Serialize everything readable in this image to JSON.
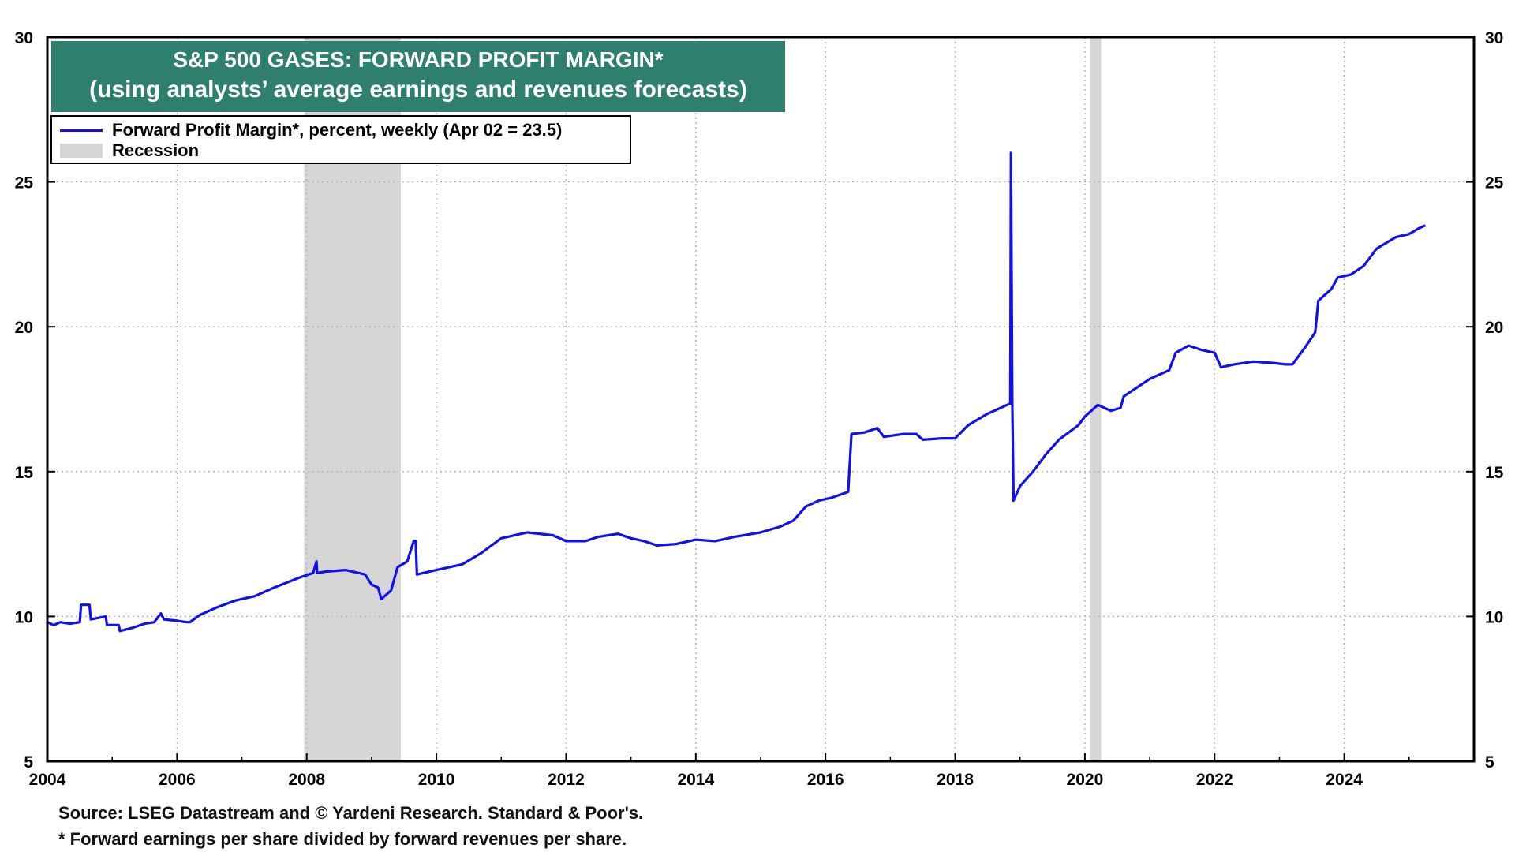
{
  "title": {
    "line1": "S&P 500 GASES: FORWARD PROFIT MARGIN*",
    "line2": "(using analysts’ average earnings and revenues forecasts)"
  },
  "legend": {
    "series_label": "Forward Profit Margin*, percent, weekly (Apr 02 = 23.5)",
    "recession_label": "Recession"
  },
  "footnotes": {
    "source": "Source: LSEG Datastream and © Yardeni Research. Standard & Poor's.",
    "note": "* Forward earnings per share divided by forward revenues per share."
  },
  "colors": {
    "line": "#1010ee",
    "recession": "#d6d6d6",
    "title_bg": "#2e7f6d",
    "grid": "#b0b0b0"
  },
  "chart_data": {
    "type": "line",
    "title": "S&P 500 GASES: FORWARD PROFIT MARGIN*",
    "subtitle": "(using analysts’ average earnings and revenues forecasts)",
    "xlim": [
      2004,
      2026
    ],
    "ylim": [
      5,
      30
    ],
    "x_ticks": [
      2004,
      2006,
      2008,
      2010,
      2012,
      2014,
      2016,
      2018,
      2020,
      2022,
      2024
    ],
    "x_tick_labels": [
      "2004",
      "2006",
      "2008",
      "2010",
      "2012",
      "2014",
      "2016",
      "2018",
      "2020",
      "2022",
      "2024"
    ],
    "y_ticks": [
      5,
      10,
      15,
      20,
      25,
      30
    ],
    "y_tick_labels": [
      "5",
      "10",
      "15",
      "20",
      "25",
      "30"
    ],
    "grid": true,
    "legend_position": "top-left",
    "recessions": [
      {
        "start": 2007.96,
        "end": 2009.45
      },
      {
        "start": 2020.08,
        "end": 2020.25
      }
    ],
    "series": [
      {
        "name": "Forward Profit Margin*, percent, weekly (Apr 02 = 23.5)",
        "x": [
          2004.0,
          2004.1,
          2004.2,
          2004.35,
          2004.5,
          2004.52,
          2004.65,
          2004.67,
          2004.9,
          2004.92,
          2005.1,
          2005.12,
          2005.3,
          2005.5,
          2005.65,
          2005.75,
          2005.8,
          2006.0,
          2006.15,
          2006.2,
          2006.35,
          2006.6,
          2006.9,
          2007.2,
          2007.5,
          2007.9,
          2008.1,
          2008.15,
          2008.16,
          2008.3,
          2008.6,
          2008.9,
          2009.0,
          2009.1,
          2009.15,
          2009.3,
          2009.4,
          2009.55,
          2009.65,
          2009.68,
          2009.7,
          2010.0,
          2010.4,
          2010.7,
          2011.0,
          2011.4,
          2011.8,
          2012.0,
          2012.3,
          2012.5,
          2012.8,
          2013.0,
          2013.2,
          2013.4,
          2013.7,
          2014.0,
          2014.3,
          2014.6,
          2015.0,
          2015.3,
          2015.5,
          2015.7,
          2015.9,
          2016.1,
          2016.35,
          2016.4,
          2016.6,
          2016.8,
          2016.9,
          2017.2,
          2017.4,
          2017.5,
          2017.8,
          2018.0,
          2018.2,
          2018.5,
          2018.85,
          2018.86,
          2018.88,
          2018.9,
          2019.0,
          2019.2,
          2019.4,
          2019.6,
          2019.9,
          2020.0,
          2020.2,
          2020.4,
          2020.55,
          2020.6,
          2020.8,
          2021.0,
          2021.3,
          2021.4,
          2021.6,
          2021.8,
          2022.0,
          2022.1,
          2022.3,
          2022.6,
          2022.9,
          2023.1,
          2023.2,
          2023.4,
          2023.55,
          2023.6,
          2023.8,
          2023.9,
          2024.1,
          2024.3,
          2024.5,
          2024.8,
          2025.0,
          2025.15,
          2025.25
        ],
        "values": [
          9.8,
          9.7,
          9.8,
          9.75,
          9.8,
          10.4,
          10.4,
          9.9,
          10.0,
          9.7,
          9.7,
          9.5,
          9.6,
          9.75,
          9.8,
          10.1,
          9.9,
          9.85,
          9.8,
          9.8,
          10.05,
          10.3,
          10.55,
          10.7,
          11.0,
          11.35,
          11.5,
          11.9,
          11.5,
          11.55,
          11.6,
          11.45,
          11.1,
          11.0,
          10.6,
          10.9,
          11.7,
          11.9,
          12.6,
          12.6,
          11.45,
          11.6,
          11.8,
          12.2,
          12.7,
          12.9,
          12.8,
          12.6,
          12.6,
          12.75,
          12.85,
          12.7,
          12.6,
          12.45,
          12.5,
          12.65,
          12.6,
          12.75,
          12.9,
          13.1,
          13.3,
          13.8,
          14.0,
          14.1,
          14.3,
          16.3,
          16.35,
          16.5,
          16.2,
          16.3,
          16.3,
          16.1,
          16.15,
          16.15,
          16.6,
          17.0,
          17.35,
          26.0,
          17.4,
          14.0,
          14.5,
          15.0,
          15.6,
          16.1,
          16.6,
          16.9,
          17.3,
          17.1,
          17.2,
          17.6,
          17.9,
          18.2,
          18.5,
          19.1,
          19.35,
          19.2,
          19.1,
          18.6,
          18.7,
          18.8,
          18.75,
          18.7,
          18.7,
          19.3,
          19.8,
          20.9,
          21.3,
          21.7,
          21.8,
          22.1,
          22.7,
          23.1,
          23.2,
          23.4,
          23.5
        ]
      }
    ]
  }
}
